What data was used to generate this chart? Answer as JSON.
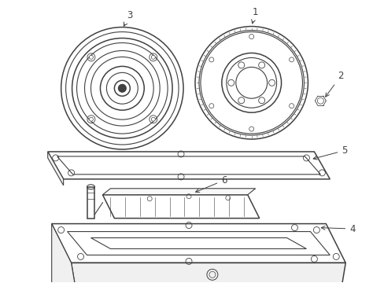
{
  "background_color": "#ffffff",
  "line_color": "#404040",
  "label_color": "#000000",
  "figsize": [
    4.89,
    3.6
  ],
  "dpi": 100
}
